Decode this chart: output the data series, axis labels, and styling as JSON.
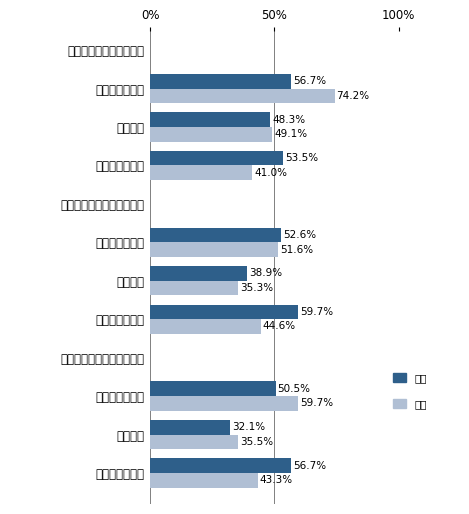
{
  "categories": [
    "【飲食店の探索・予約】",
    "スマートフォン",
    "携帯電話",
    "ノートパソコン",
    "【宿泊施設の探索・予約】",
    "スマートフォン",
    "携帯電話",
    "ノートパソコン",
    "【観光施設の探索・予約】",
    "スマートフォン",
    "携帯電話",
    "ノートパソコン"
  ],
  "male_values": [
    null,
    56.7,
    48.3,
    53.5,
    null,
    52.6,
    38.9,
    59.7,
    null,
    50.5,
    32.1,
    56.7
  ],
  "female_values": [
    null,
    74.2,
    49.1,
    41.0,
    null,
    51.6,
    35.3,
    44.6,
    null,
    59.7,
    35.5,
    43.3
  ],
  "male_labels": [
    null,
    "56.7%",
    "48.3%",
    "53.5%",
    null,
    "52.6%",
    "38.9%",
    "59.7%",
    null,
    "50.5%",
    "32.1%",
    "56.7%"
  ],
  "female_labels": [
    null,
    "74.2%",
    "49.1%",
    "41.0%",
    null,
    "51.6%",
    "35.3%",
    "44.6%",
    null,
    "59.7%",
    "35.5%",
    "43.3%"
  ],
  "header_indices": [
    0,
    4,
    8
  ],
  "male_color": "#2e5f8a",
  "female_color": "#b0bfd4",
  "xlim": [
    0,
    100
  ],
  "bar_height": 0.38,
  "legend_male": "男性",
  "legend_female": "女性",
  "label_fontsize": 7.5,
  "tick_fontsize": 8.5,
  "header_fontsize": 8.5,
  "bg_color": "#ffffff"
}
